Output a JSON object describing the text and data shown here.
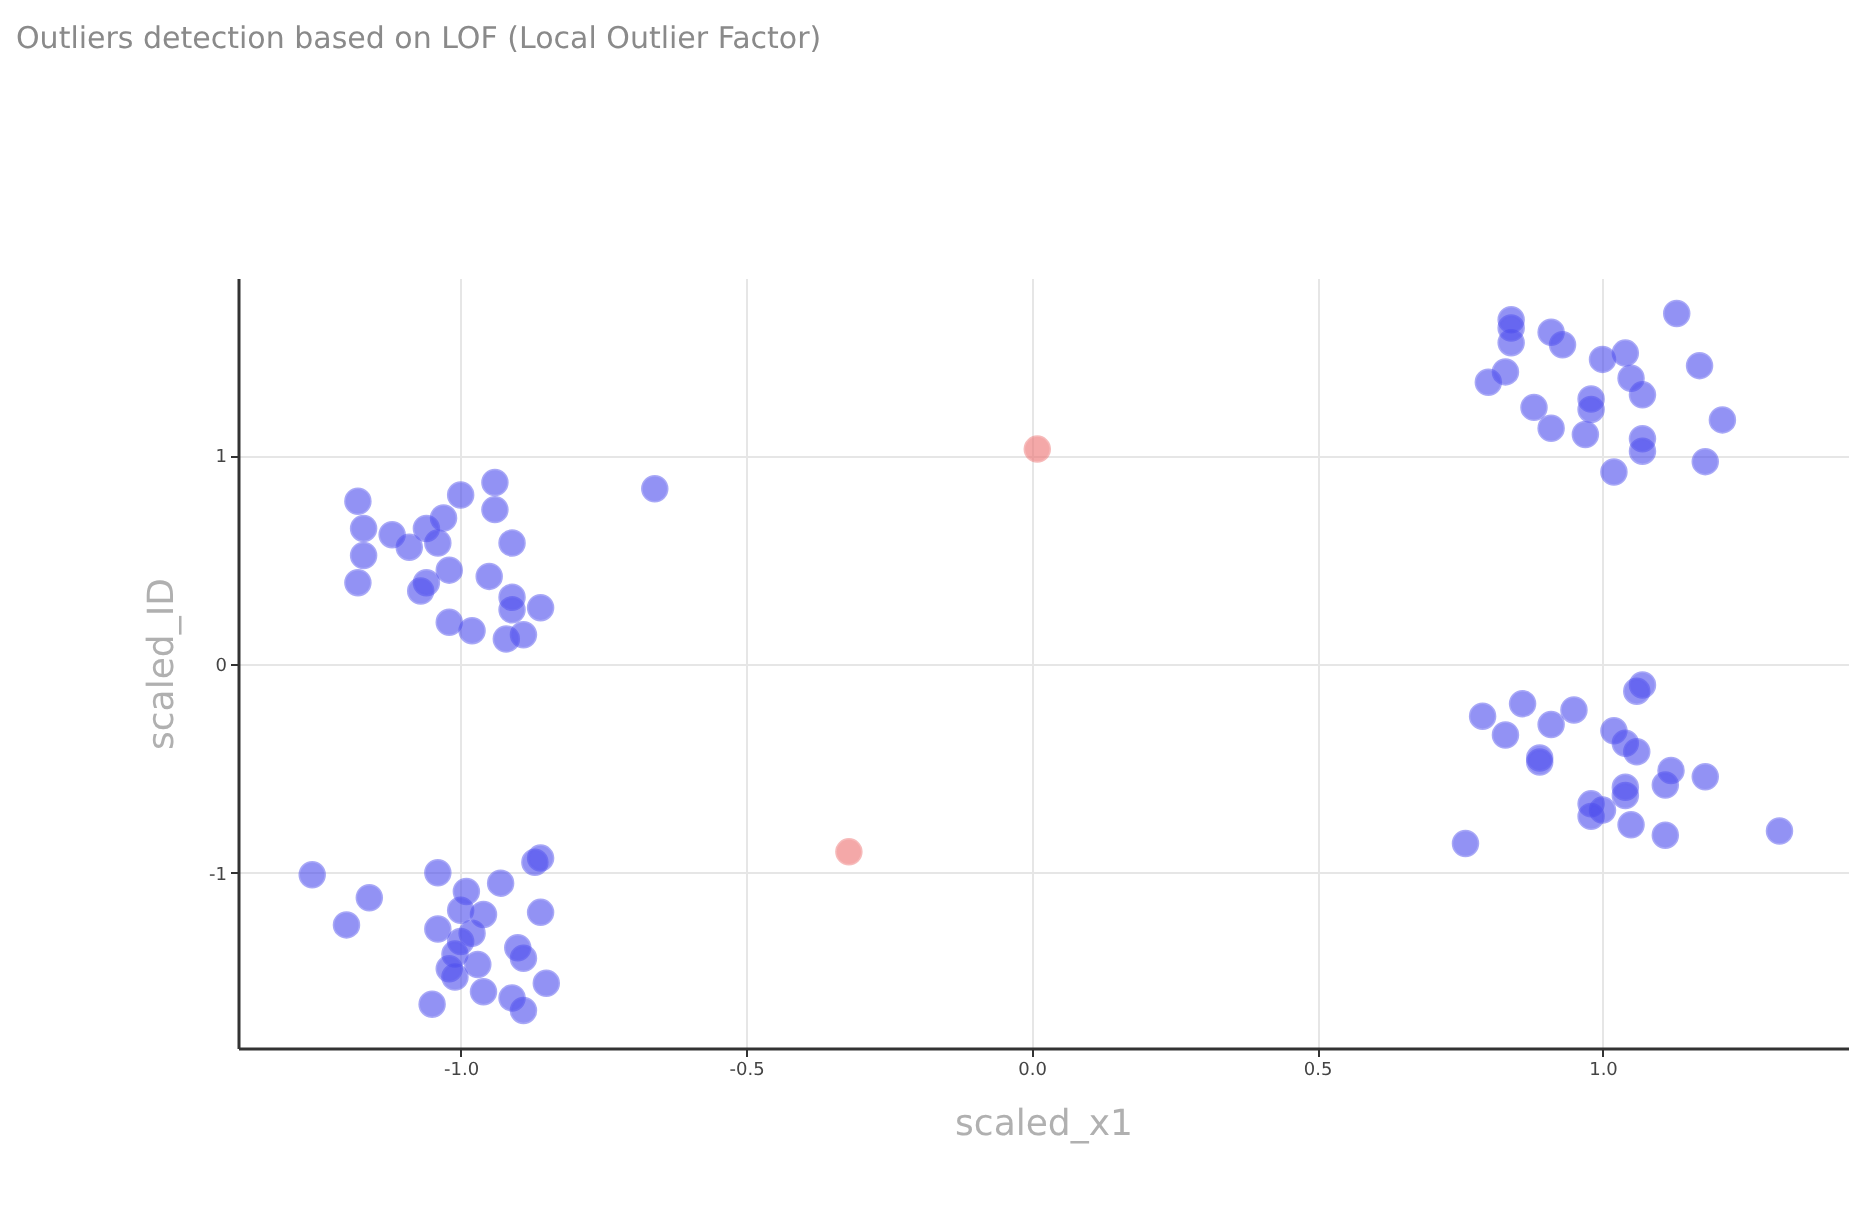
{
  "chart_data": {
    "type": "scatter",
    "title": "Outliers detection based on LOF (Local Outlier Factor)",
    "xlabel": "scaled_x1",
    "ylabel": "scaled_ID",
    "xlim": [
      -1.39,
      1.43
    ],
    "ylim": [
      -1.84,
      1.85
    ],
    "xticks": [
      {
        "value": -1,
        "label": "-1.0"
      },
      -0.5,
      {
        "value": 0,
        "label": "0.0"
      },
      0.5,
      {
        "value": 1,
        "label": "1.0"
      }
    ],
    "yticks": [
      -1,
      0,
      1
    ],
    "grid": true,
    "series": [
      {
        "color": "#4b4bee",
        "x": [
          -1.18,
          -1.17,
          -1.17,
          -1.18,
          -1.12,
          -1.09,
          -1.06,
          -1.03,
          -1.04,
          -1.0,
          -0.94,
          -0.94,
          -0.91,
          -1.07,
          -1.06,
          -1.02,
          -1.02,
          -0.98,
          -0.95,
          -0.91,
          -0.91,
          -0.92,
          -0.89,
          -0.86,
          -0.66,
          -1.26,
          -1.16,
          -1.2,
          -1.04,
          -0.99,
          -1.0,
          -0.98,
          -1.04,
          -1.0,
          -1.02,
          -1.01,
          -0.96,
          -0.93,
          -0.87,
          -0.86,
          -0.9,
          -0.89,
          -0.86,
          -0.97,
          -0.96,
          -1.05,
          -0.91,
          -0.89,
          -0.85,
          -1.01,
          0.84,
          0.84,
          0.84,
          0.91,
          0.93,
          1.0,
          1.04,
          1.13,
          1.17,
          0.83,
          0.8,
          1.05,
          1.07,
          0.98,
          0.98,
          0.88,
          0.91,
          0.97,
          1.07,
          1.07,
          1.02,
          1.18,
          1.21,
          1.07,
          1.06,
          0.79,
          0.86,
          0.83,
          0.91,
          0.95,
          1.02,
          1.04,
          1.06,
          0.89,
          0.89,
          1.12,
          1.11,
          1.18,
          1.04,
          1.04,
          0.98,
          0.98,
          1.0,
          1.05,
          1.11,
          1.31,
          0.76
        ],
        "values": [
          0.78,
          0.65,
          0.52,
          0.39,
          0.62,
          0.56,
          0.65,
          0.7,
          0.58,
          0.81,
          0.87,
          0.74,
          0.58,
          0.35,
          0.39,
          0.45,
          0.2,
          0.16,
          0.42,
          0.32,
          0.26,
          0.12,
          0.14,
          0.27,
          0.84,
          -1.01,
          -1.12,
          -1.25,
          -1.0,
          -1.09,
          -1.18,
          -1.29,
          -1.27,
          -1.33,
          -1.46,
          -1.5,
          -1.2,
          -1.05,
          -0.95,
          -0.93,
          -1.36,
          -1.41,
          -1.19,
          -1.44,
          -1.57,
          -1.63,
          -1.6,
          -1.66,
          -1.53,
          -1.39,
          1.65,
          1.61,
          1.54,
          1.59,
          1.53,
          1.46,
          1.49,
          1.68,
          1.43,
          1.4,
          1.35,
          1.37,
          1.29,
          1.27,
          1.22,
          1.23,
          1.13,
          1.1,
          1.08,
          1.02,
          0.92,
          0.97,
          1.17,
          -0.1,
          -0.13,
          -0.25,
          -0.19,
          -0.34,
          -0.29,
          -0.22,
          -0.32,
          -0.38,
          -0.42,
          -0.45,
          -0.47,
          -0.51,
          -0.58,
          -0.54,
          -0.59,
          -0.63,
          -0.67,
          -0.73,
          -0.7,
          -0.77,
          -0.82,
          -0.8,
          -0.86
        ]
      },
      {
        "color": "#ee7070",
        "x": [
          0.01,
          -0.32
        ],
        "values": [
          1.03,
          -0.9
        ]
      }
    ]
  }
}
